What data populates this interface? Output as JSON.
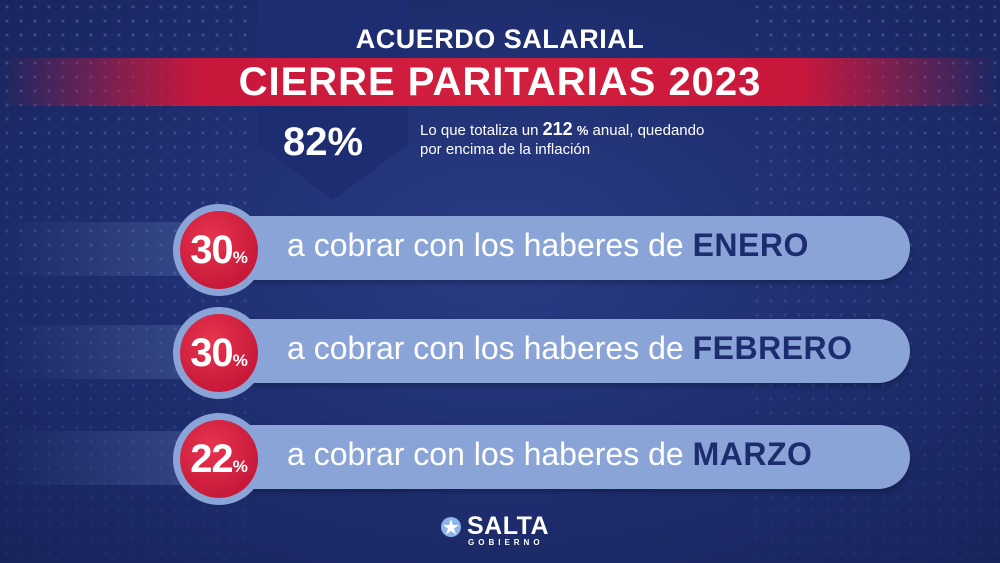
{
  "header": {
    "subtitle": "ACUERDO SALARIAL",
    "title": "CIERRE PARITARIAS 2023"
  },
  "total": {
    "percent": "82%",
    "note_prefix": "Lo que totaliza un ",
    "note_value": "212",
    "note_symbol": "%",
    "note_suffix": " anual, quedando",
    "note_line2": "por encima de la inflación"
  },
  "installments": [
    {
      "value": "30",
      "symbol": "%",
      "text": "a cobrar con los haberes de ",
      "month": "ENERO"
    },
    {
      "value": "30",
      "symbol": "%",
      "text": "a cobrar con los haberes de ",
      "month": "FEBRERO"
    },
    {
      "value": "22",
      "symbol": "%",
      "text": "a cobrar con los haberes de ",
      "month": "MARZO"
    }
  ],
  "logo": {
    "name": "SALTA",
    "sub": "GOBIERNO",
    "icon": "sun-star-icon"
  },
  "colors": {
    "background": "#1e2d6e",
    "banner": "#d4203e",
    "pill": "#8aa4d8",
    "badge": "#c71a3a",
    "month_text": "#1d2c6e"
  }
}
